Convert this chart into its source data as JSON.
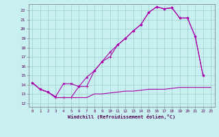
{
  "xlabel": "Windchill (Refroidissement éolien,°C)",
  "bg_color": "#c8f0f0",
  "grid_color": "#9ecece",
  "line_color": "#aa00aa",
  "xlim": [
    -0.5,
    23.5
  ],
  "ylim": [
    11.6,
    22.7
  ],
  "ytick_vals": [
    12,
    13,
    14,
    15,
    16,
    17,
    18,
    19,
    20,
    21,
    22
  ],
  "xtick_vals": [
    0,
    1,
    2,
    3,
    4,
    5,
    6,
    7,
    8,
    9,
    10,
    11,
    12,
    13,
    14,
    15,
    16,
    17,
    18,
    19,
    20,
    21,
    22,
    23
  ],
  "curve1_x": [
    0,
    1,
    2,
    3,
    4,
    5,
    6,
    7,
    8,
    9,
    10,
    11,
    12,
    13,
    14,
    15,
    16,
    17,
    18,
    19,
    20,
    21,
    22
  ],
  "curve1_y": [
    14.2,
    13.5,
    13.2,
    12.7,
    14.1,
    14.1,
    13.8,
    14.8,
    15.5,
    16.5,
    17.5,
    18.3,
    19.0,
    19.8,
    20.5,
    21.8,
    22.4,
    22.2,
    22.3,
    21.2,
    21.2,
    19.2,
    15.0
  ],
  "curve2_x": [
    0,
    1,
    2,
    3,
    4,
    5,
    6,
    7,
    8,
    9,
    10,
    11,
    12,
    13,
    14,
    15,
    16,
    17,
    18,
    19,
    20,
    21,
    22
  ],
  "curve2_y": [
    14.2,
    13.5,
    13.2,
    12.6,
    12.6,
    12.6,
    13.8,
    13.8,
    15.5,
    16.5,
    17.0,
    18.3,
    19.0,
    19.8,
    20.5,
    21.8,
    22.4,
    22.2,
    22.3,
    21.2,
    21.2,
    19.2,
    15.0
  ],
  "curve3_x": [
    0,
    1,
    2,
    3,
    4,
    5,
    6,
    7,
    8,
    9,
    10,
    11,
    12,
    13,
    14,
    15,
    16,
    17,
    18,
    19,
    20,
    21,
    22,
    23
  ],
  "curve3_y": [
    14.2,
    13.5,
    13.2,
    12.6,
    12.6,
    12.6,
    12.6,
    12.6,
    13.0,
    13.0,
    13.1,
    13.2,
    13.3,
    13.3,
    13.4,
    13.5,
    13.5,
    13.5,
    13.6,
    13.7,
    13.7,
    13.7,
    13.7,
    13.7
  ],
  "marker_color": "#aa00aa",
  "lw": 0.8,
  "ms": 2.0
}
